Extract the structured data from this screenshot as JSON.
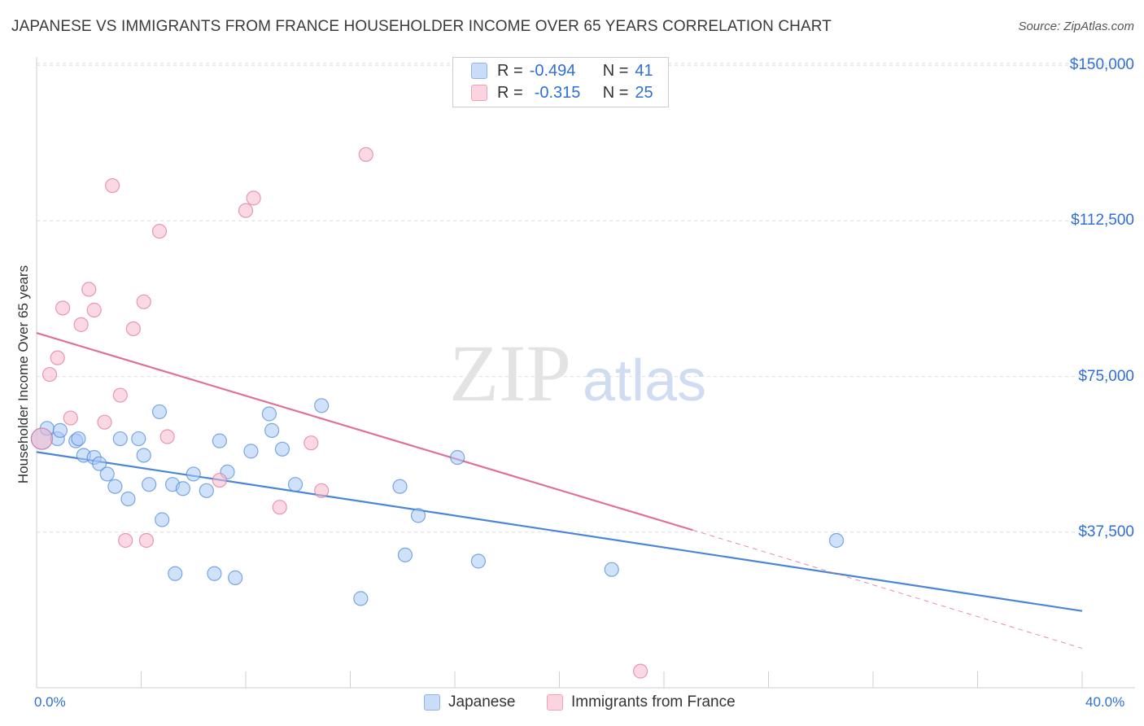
{
  "title": "JAPANESE VS IMMIGRANTS FROM FRANCE HOUSEHOLDER INCOME OVER 65 YEARS CORRELATION CHART",
  "source": "Source: ZipAtlas.com",
  "watermark": {
    "zip": "ZIP",
    "atlas": "atlas"
  },
  "legend": {
    "rows": [
      {
        "r_label": "R =",
        "r_value": "-0.494",
        "n_label": "N =",
        "n_value": "41",
        "color": "#a9c8f5"
      },
      {
        "r_label": "R =",
        "r_value": "-0.315",
        "n_label": "N =",
        "n_value": "25",
        "color": "#f8b9cc"
      }
    ]
  },
  "bottom_legend": [
    {
      "label": "Japanese",
      "color": "#a9c8f5"
    },
    {
      "label": "Immigrants from France",
      "color": "#f8b9cc"
    }
  ],
  "chart_data": {
    "type": "scatter",
    "title": "JAPANESE VS IMMIGRANTS FROM FRANCE HOUSEHOLDER INCOME OVER 65 YEARS CORRELATION CHART",
    "xlabel": "",
    "ylabel": "Householder Income Over 65 years",
    "xlim": [
      0,
      40
    ],
    "ylim": [
      0,
      152000
    ],
    "x_tick_labels": {
      "left": "0.0%",
      "right": "40.0%"
    },
    "y_ticks": [
      {
        "value": 37500,
        "label": "$37,500"
      },
      {
        "value": 75000,
        "label": "$75,000"
      },
      {
        "value": 112500,
        "label": "$112,500"
      },
      {
        "value": 150000,
        "label": "$150,000"
      }
    ],
    "grid": true,
    "series": [
      {
        "name": "Japanese",
        "color": "#4a86d8",
        "fill": "#a9c8f5",
        "points": [
          [
            0.2,
            60000
          ],
          [
            0.4,
            62500
          ],
          [
            0.8,
            60000
          ],
          [
            0.9,
            62000
          ],
          [
            1.5,
            59500
          ],
          [
            1.6,
            60000
          ],
          [
            1.8,
            56000
          ],
          [
            2.2,
            55500
          ],
          [
            2.4,
            54000
          ],
          [
            2.7,
            51500
          ],
          [
            3.0,
            48500
          ],
          [
            3.2,
            60000
          ],
          [
            3.5,
            45500
          ],
          [
            3.9,
            60000
          ],
          [
            4.1,
            56000
          ],
          [
            4.3,
            49000
          ],
          [
            4.7,
            66500
          ],
          [
            4.8,
            40500
          ],
          [
            5.2,
            49000
          ],
          [
            5.3,
            27500
          ],
          [
            5.6,
            48000
          ],
          [
            6.0,
            51500
          ],
          [
            6.5,
            47500
          ],
          [
            6.8,
            27500
          ],
          [
            7.0,
            59500
          ],
          [
            7.3,
            52000
          ],
          [
            7.6,
            26500
          ],
          [
            8.2,
            57000
          ],
          [
            8.9,
            66000
          ],
          [
            9.0,
            62000
          ],
          [
            9.4,
            57500
          ],
          [
            9.9,
            49000
          ],
          [
            10.9,
            68000
          ],
          [
            12.4,
            21500
          ],
          [
            13.9,
            48500
          ],
          [
            14.1,
            32000
          ],
          [
            14.6,
            41500
          ],
          [
            16.1,
            55500
          ],
          [
            16.9,
            30500
          ],
          [
            22.0,
            28500
          ],
          [
            30.6,
            35500
          ]
        ],
        "trend": {
          "x": [
            0,
            40
          ],
          "y": [
            56800,
            18500
          ]
        }
      },
      {
        "name": "Immigrants from France",
        "color": "#e0709a",
        "fill": "#f8b9cc",
        "points": [
          [
            0.2,
            60000
          ],
          [
            0.5,
            75500
          ],
          [
            0.8,
            79500
          ],
          [
            1.0,
            91500
          ],
          [
            1.3,
            65000
          ],
          [
            1.7,
            87500
          ],
          [
            2.0,
            96000
          ],
          [
            2.2,
            91000
          ],
          [
            2.6,
            64000
          ],
          [
            2.9,
            121000
          ],
          [
            3.2,
            70500
          ],
          [
            3.4,
            35500
          ],
          [
            3.7,
            86500
          ],
          [
            4.1,
            93000
          ],
          [
            4.2,
            35500
          ],
          [
            4.7,
            110000
          ],
          [
            5.0,
            60500
          ],
          [
            7.0,
            50000
          ],
          [
            8.0,
            115000
          ],
          [
            8.3,
            118000
          ],
          [
            9.3,
            43500
          ],
          [
            10.5,
            59000
          ],
          [
            10.9,
            47500
          ],
          [
            12.6,
            128500
          ],
          [
            23.1,
            4000
          ]
        ],
        "trend": {
          "x": [
            0,
            25.1
          ],
          "y": [
            85500,
            38000
          ]
        },
        "trend_extension": {
          "x": [
            25.1,
            40
          ],
          "y": [
            38000,
            9500
          ]
        }
      }
    ]
  }
}
